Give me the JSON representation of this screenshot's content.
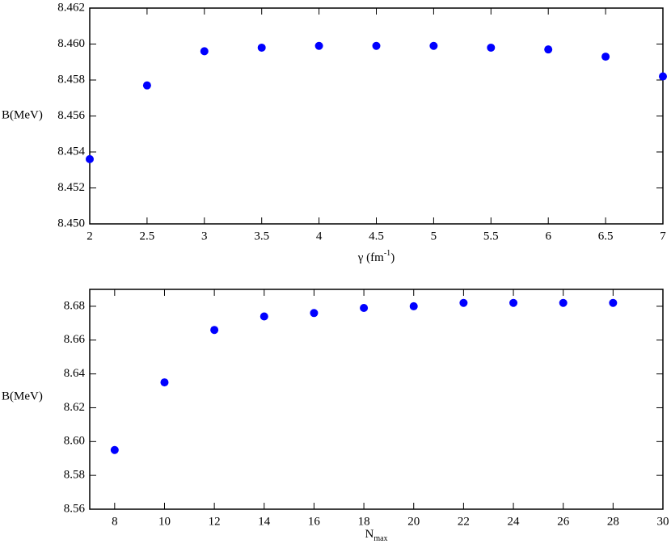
{
  "chart_data": [
    {
      "type": "scatter",
      "ylabel": "B(MeV)",
      "xlabel": [
        "γ (fm",
        "-1",
        ")"
      ],
      "xlabel_style": "superscript",
      "color": "#0000ff",
      "x": [
        2,
        2.5,
        3,
        3.5,
        4,
        4.5,
        5,
        5.5,
        6,
        6.5,
        7
      ],
      "values": [
        8.4536,
        8.4577,
        8.4596,
        8.4598,
        8.4599,
        8.4599,
        8.4599,
        8.4598,
        8.4597,
        8.4593,
        8.4582
      ],
      "xlim": [
        2,
        7
      ],
      "xticks": [
        2,
        2.5,
        3,
        3.5,
        4,
        4.5,
        5,
        5.5,
        6,
        6.5,
        7
      ],
      "ylim": [
        8.45,
        8.462
      ],
      "yticks": [
        {
          "value": 8.45,
          "label": "8.450"
        },
        8.452,
        8.454,
        8.456,
        8.458,
        {
          "value": 8.46,
          "label": "8.460"
        },
        8.462
      ]
    },
    {
      "type": "scatter",
      "ylabel": "B(MeV)",
      "xlabel": [
        "N",
        "max"
      ],
      "xlabel_style": "subscript",
      "color": "#0000ff",
      "x": [
        8,
        10,
        12,
        14,
        16,
        18,
        20,
        22,
        24,
        26,
        28
      ],
      "values": [
        8.595,
        8.635,
        8.666,
        8.674,
        8.676,
        8.679,
        8.68,
        8.682,
        8.682,
        8.682,
        8.682
      ],
      "xlim": [
        7,
        30
      ],
      "xticks": [
        8,
        10,
        12,
        14,
        16,
        18,
        20,
        22,
        24,
        26,
        28,
        30
      ],
      "ylim": [
        8.56,
        8.69
      ],
      "yticks": [
        8.56,
        8.58,
        {
          "value": 8.6,
          "label": "8.60"
        },
        8.62,
        8.64,
        8.66,
        8.68
      ]
    }
  ]
}
